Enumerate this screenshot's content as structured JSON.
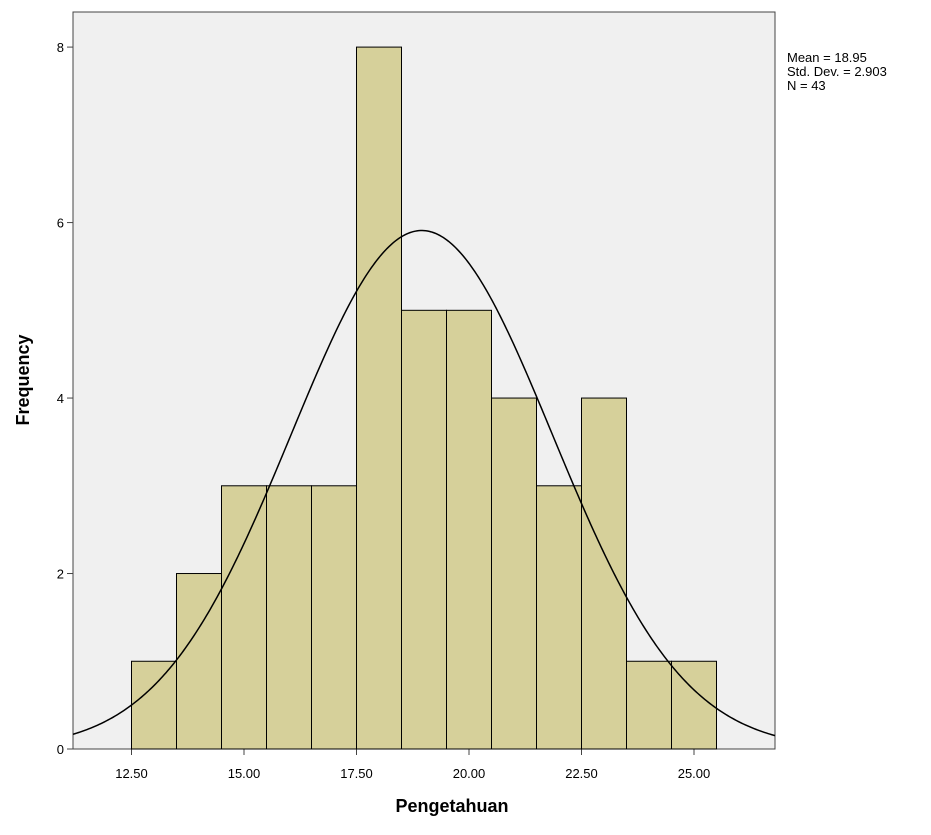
{
  "chart_data": {
    "type": "histogram",
    "x_label": "Pengetahuan",
    "y_label": "Frequency",
    "bins": [
      12.5,
      13.5,
      14.5,
      15.5,
      16.5,
      17.5,
      18.5,
      19.5,
      20.5,
      21.5,
      22.5,
      23.5,
      24.5,
      25.5
    ],
    "values": [
      1,
      2,
      3,
      3,
      3,
      8,
      5,
      5,
      4,
      3,
      4,
      1,
      1
    ],
    "color": "#d6d09a",
    "curve_color": "#000000",
    "xlim": [
      11.2,
      26.8
    ],
    "ylim": [
      0,
      8.4
    ],
    "xticks": [
      {
        "value": 12.5,
        "label": "12.50"
      },
      {
        "value": 15,
        "label": "15.00"
      },
      {
        "value": 17.5,
        "label": "17.50"
      },
      {
        "value": 20,
        "label": "20.00"
      },
      {
        "value": 22.5,
        "label": "22.50"
      },
      {
        "value": 25,
        "label": "25.00"
      }
    ],
    "yticks": [
      0,
      2,
      4,
      6,
      8
    ],
    "stats": [
      {
        "value": 18.95,
        "label": "Mean = 18.95"
      },
      {
        "value": 2.903,
        "label": "Std. Dev. = 2.903"
      },
      {
        "value": 43,
        "label": "N = 43"
      }
    ]
  }
}
